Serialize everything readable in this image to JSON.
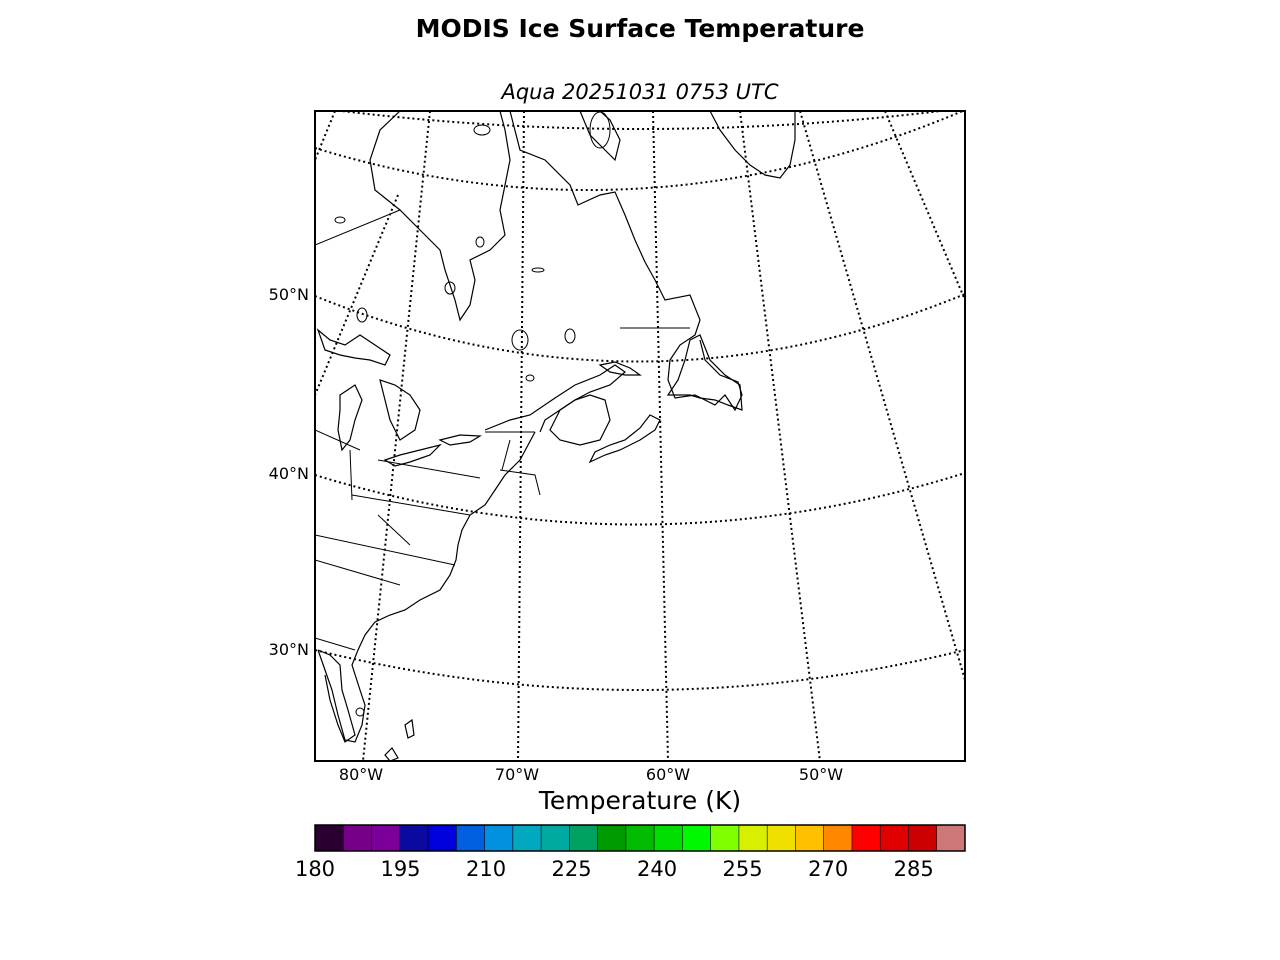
{
  "title": "MODIS Ice Surface Temperature",
  "subtitle": "Aqua 20251031 0753 UTC",
  "map": {
    "projection": "lambert-conformal",
    "extent": {
      "lon_min": -83,
      "lon_max": -38,
      "lat_min": 24,
      "lat_max": 62
    },
    "graticule_style": "dotted",
    "lat_labels": [
      {
        "value": 50,
        "text": "50°N"
      },
      {
        "value": 40,
        "text": "40°N"
      },
      {
        "value": 30,
        "text": "30°N"
      }
    ],
    "lon_labels": [
      {
        "value": -80,
        "text": "80°W"
      },
      {
        "value": -70,
        "text": "70°W"
      },
      {
        "value": -60,
        "text": "60°W"
      },
      {
        "value": -50,
        "text": "50°W"
      }
    ],
    "data_plotted": "none visible (ice surface temperature field empty over region)"
  },
  "colorbar": {
    "label": "Temperature (K)",
    "min": 180,
    "max": 294,
    "ticks": [
      "180",
      "195",
      "210",
      "225",
      "240",
      "255",
      "270",
      "285"
    ],
    "tick_values": [
      180,
      195,
      210,
      225,
      240,
      255,
      270,
      285
    ],
    "colors": [
      "#2a0030",
      "#770088",
      "#7a0099",
      "#0a0aa0",
      "#0000dd",
      "#0060e0",
      "#0090dd",
      "#00a8c0",
      "#00aaa0",
      "#00a060",
      "#009900",
      "#00bb00",
      "#00dd00",
      "#00f800",
      "#80ff00",
      "#d8f000",
      "#f0e000",
      "#ffc000",
      "#ff8800",
      "#ff0000",
      "#e00000",
      "#cc0000",
      "#cc7878"
    ]
  }
}
